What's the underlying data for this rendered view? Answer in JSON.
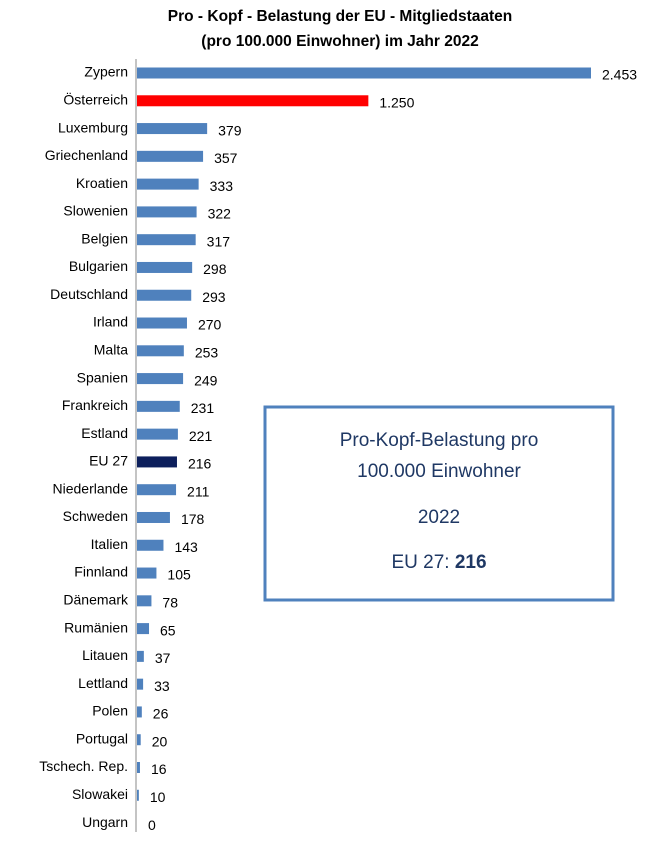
{
  "chart_data": {
    "type": "barh",
    "title": [
      "Pro - Kopf - Belastung der EU - Mitgliedstaaten",
      "(pro 100.000 Einwohner) im Jahr 2022"
    ],
    "categories": [
      "Zypern",
      "Österreich",
      "Luxemburg",
      "Griechenland",
      "Kroatien",
      "Slowenien",
      "Belgien",
      "Bulgarien",
      "Deutschland",
      "Irland",
      "Malta",
      "Spanien",
      "Frankreich",
      "Estland",
      "EU 27",
      "Niederlande",
      "Schweden",
      "Italien",
      "Finnland",
      "Dänemark",
      "Rumänien",
      "Litauen",
      "Lettland",
      "Polen",
      "Portugal",
      "Tschech. Rep.",
      "Slowakei",
      "Ungarn"
    ],
    "values": [
      2453,
      1250,
      379,
      357,
      333,
      322,
      317,
      298,
      293,
      270,
      253,
      249,
      231,
      221,
      216,
      211,
      178,
      143,
      105,
      78,
      65,
      37,
      33,
      26,
      20,
      16,
      10,
      0
    ],
    "value_labels": [
      "2.453",
      "1.250",
      "379",
      "357",
      "333",
      "322",
      "317",
      "298",
      "293",
      "270",
      "253",
      "249",
      "231",
      "221",
      "216",
      "211",
      "178",
      "143",
      "105",
      "78",
      "65",
      "37",
      "33",
      "26",
      "20",
      "16",
      "10",
      "0"
    ],
    "colors": [
      "#4f81bd",
      "#ff0000",
      "#4f81bd",
      "#4f81bd",
      "#4f81bd",
      "#4f81bd",
      "#4f81bd",
      "#4f81bd",
      "#4f81bd",
      "#4f81bd",
      "#4f81bd",
      "#4f81bd",
      "#4f81bd",
      "#4f81bd",
      "#0d1f5c",
      "#4f81bd",
      "#4f81bd",
      "#4f81bd",
      "#4f81bd",
      "#4f81bd",
      "#4f81bd",
      "#4f81bd",
      "#4f81bd",
      "#4f81bd",
      "#4f81bd",
      "#4f81bd",
      "#4f81bd",
      "#4f81bd"
    ],
    "annotation": {
      "lines": [
        "Pro-Kopf-Belastung pro",
        "100.000 Einwohner",
        "2022"
      ],
      "label": "EU 27:",
      "value": "216"
    }
  }
}
